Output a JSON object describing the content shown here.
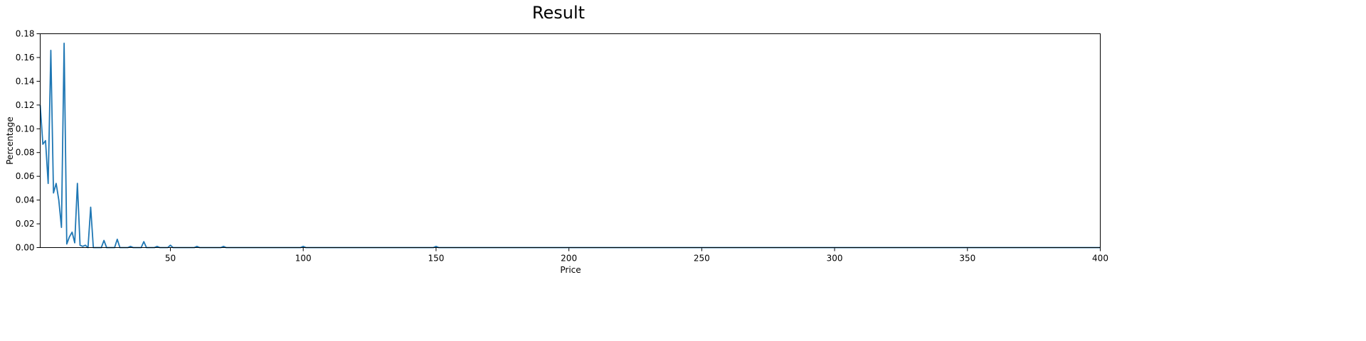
{
  "chart_data": {
    "type": "line",
    "title": "Result",
    "xlabel": "Price",
    "ylabel": "Percentage",
    "xlim": [
      1,
      400
    ],
    "ylim": [
      0,
      0.18
    ],
    "xticks": [
      50,
      100,
      150,
      200,
      250,
      300,
      350,
      400
    ],
    "yticks": [
      0.0,
      0.02,
      0.04,
      0.06,
      0.08,
      0.1,
      0.12,
      0.14,
      0.16,
      0.18
    ],
    "ytick_labels": [
      "0.00",
      "0.02",
      "0.04",
      "0.06",
      "0.08",
      "0.10",
      "0.12",
      "0.14",
      "0.16",
      "0.18"
    ],
    "grid": false,
    "series": [
      {
        "color": "#1f77b4",
        "x": [
          1,
          2,
          3,
          4,
          5,
          6,
          7,
          8,
          9,
          10,
          11,
          12,
          13,
          14,
          15,
          16,
          17,
          18,
          19,
          20,
          21,
          22,
          23,
          24,
          25,
          26,
          27,
          28,
          29,
          30,
          31,
          32,
          33,
          34,
          35,
          36,
          37,
          38,
          39,
          40,
          41,
          42,
          43,
          44,
          45,
          46,
          47,
          48,
          49,
          50,
          51,
          52,
          55,
          56,
          59,
          60,
          61,
          65,
          66,
          69,
          70,
          71,
          75,
          79,
          80,
          81,
          85,
          90,
          95,
          99,
          100,
          101,
          120,
          149,
          150,
          151,
          200,
          250,
          300,
          350,
          400
        ],
        "y": [
          0.12,
          0.087,
          0.09,
          0.054,
          0.166,
          0.046,
          0.054,
          0.04,
          0.017,
          0.172,
          0.003,
          0.009,
          0.013,
          0.004,
          0.054,
          0.002,
          0.001,
          0.002,
          0.0,
          0.034,
          0.0,
          0.0,
          0.0,
          0.0,
          0.006,
          0.0,
          0.0,
          0.0,
          0.0,
          0.007,
          0.0,
          0.0,
          0.0,
          0.0,
          0.001,
          0.0,
          0.0,
          0.0,
          0.0,
          0.005,
          0.0,
          0.0,
          0.0,
          0.0,
          0.001,
          0.0,
          0.0,
          0.0,
          0.0,
          0.002,
          0.0,
          0.0,
          0.0,
          0.0,
          0.0,
          0.001,
          0.0,
          0.0,
          0.0,
          0.0,
          0.001,
          0.0,
          0.0,
          0.0,
          0.0,
          0.0,
          0.0,
          0.0,
          0.0,
          0.0,
          0.001,
          0.0,
          0.0,
          0.0,
          0.001,
          0.0,
          0.0,
          0.0,
          0.0,
          0.0,
          0.0
        ]
      }
    ]
  }
}
